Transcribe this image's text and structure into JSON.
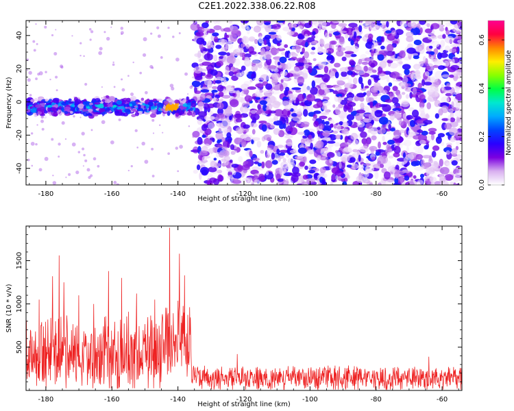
{
  "figure": {
    "title": "C2E1.2022.338.06.22.R08"
  },
  "colors": {
    "snr_line": "#ee2222",
    "colormap": [
      "#ffffff",
      "#d8b0f0",
      "#7b00e0",
      "#2a00ff",
      "#0044ff",
      "#00aaff",
      "#00e8d0",
      "#00ff44",
      "#88ff00",
      "#ffee00",
      "#ff8800",
      "#ff0040",
      "#ff0090"
    ]
  },
  "chart_data": [
    {
      "type": "heatmap",
      "title": "",
      "xlabel": "Height of straight line (km)",
      "ylabel": "Frequency (Hz)",
      "xlim": [
        -186,
        -54
      ],
      "ylim": [
        -50,
        49
      ],
      "x_ticks": [
        -180,
        -160,
        -140,
        -120,
        -100,
        -80,
        -60
      ],
      "y_ticks": [
        -40,
        -20,
        0,
        20,
        40
      ],
      "x_tick_labels": [
        "-180",
        "-160",
        "-140",
        "-120",
        "-100",
        "-80",
        "-60"
      ],
      "y_tick_labels": [
        "-40",
        "-20",
        "0",
        "20",
        "40"
      ],
      "colorbar": {
        "label": "Normalized spectral amplitude",
        "range": [
          0,
          0.68
        ],
        "ticks": [
          0.0,
          0.2,
          0.4,
          0.6
        ],
        "tick_labels": [
          "0.0",
          "0.2",
          "0.4",
          "0.6"
        ]
      },
      "regions": [
        {
          "x_range": [
            -186,
            -135
          ],
          "content": "narrow band of high amplitude centered near 0 Hz, width about ±7 Hz, peak amplitude ~0.55 near -142 km"
        },
        {
          "x_range": [
            -135,
            -54
          ],
          "content": "broadband low-amplitude noise (0.05–0.2) spread across -50 to 49 Hz"
        }
      ],
      "band": {
        "center_hz": -3,
        "half_width_hz": 7,
        "x_end": -135,
        "peak_x": -142,
        "peak_value": 0.55
      }
    },
    {
      "type": "line",
      "title": "",
      "xlabel": "Height of straight line (km)",
      "ylabel": "SNR (10 * v/v)",
      "xlim": [
        -186,
        -54
      ],
      "ylim": [
        0,
        1900
      ],
      "x_ticks": [
        -180,
        -160,
        -140,
        -120,
        -100,
        -80,
        -60
      ],
      "y_ticks": [
        500,
        1000,
        1500
      ],
      "x_tick_labels": [
        "-180",
        "-160",
        "-140",
        "-120",
        "-100",
        "-80",
        "-60"
      ],
      "y_tick_labels": [
        "500",
        "1000",
        "1500"
      ],
      "series": [
        {
          "x_start": -186,
          "x_end": -54,
          "segments": [
            {
              "x_range": [
                -186,
                -145
              ],
              "typical_range": [
                50,
                900
              ],
              "mean": 420
            },
            {
              "x_range": [
                -145,
                -136
              ],
              "typical_range": [
                200,
                1100
              ],
              "mean": 600
            },
            {
              "x_range": [
                -136,
                -54
              ],
              "typical_range": [
                20,
                300
              ],
              "mean": 140
            }
          ],
          "peaks": [
            {
              "x": -182.0,
              "y": 1050
            },
            {
              "x": -178.0,
              "y": 1320
            },
            {
              "x": -176.0,
              "y": 1560
            },
            {
              "x": -174.5,
              "y": 1250
            },
            {
              "x": -170.0,
              "y": 1100
            },
            {
              "x": -165.5,
              "y": 1000
            },
            {
              "x": -161.0,
              "y": 1380
            },
            {
              "x": -157.0,
              "y": 1300
            },
            {
              "x": -152.5,
              "y": 1120
            },
            {
              "x": -147.0,
              "y": 1050
            },
            {
              "x": -142.5,
              "y": 1880
            },
            {
              "x": -139.5,
              "y": 1580
            },
            {
              "x": -138.0,
              "y": 1330
            },
            {
              "x": -122.0,
              "y": 420
            },
            {
              "x": -64.0,
              "y": 390
            }
          ]
        }
      ]
    }
  ]
}
